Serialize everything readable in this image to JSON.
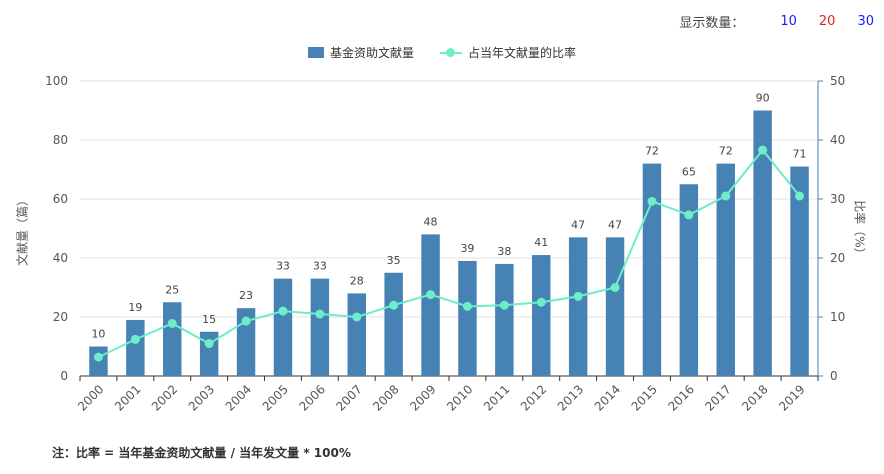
{
  "display_control": {
    "label": "显示数量：",
    "options": [
      {
        "text": "10",
        "color": "#1a1aff"
      },
      {
        "text": "20",
        "color": "#e02020"
      },
      {
        "text": "30",
        "color": "#1a1aff"
      }
    ]
  },
  "colors": {
    "bar": "#4682b4",
    "line": "#6eedc8",
    "axis_right": "#4682b4"
  },
  "chart_data": {
    "type": "bar",
    "categories": [
      "2000",
      "2001",
      "2002",
      "2003",
      "2004",
      "2005",
      "2006",
      "2007",
      "2008",
      "2009",
      "2010",
      "2011",
      "2012",
      "2013",
      "2014",
      "2015",
      "2016",
      "2017",
      "2018",
      "2019"
    ],
    "series": [
      {
        "name": "基金资助文献量",
        "type": "bar",
        "axis": "left",
        "values": [
          10,
          19,
          25,
          15,
          23,
          33,
          33,
          28,
          35,
          48,
          39,
          38,
          41,
          47,
          47,
          72,
          65,
          72,
          90,
          71
        ]
      },
      {
        "name": "占当年文献量的比率",
        "type": "line",
        "axis": "right",
        "values": [
          3.2,
          6.2,
          8.9,
          5.5,
          9.3,
          11.0,
          10.5,
          10.0,
          12.0,
          13.8,
          11.8,
          12.0,
          12.5,
          13.5,
          15.0,
          29.6,
          27.3,
          30.5,
          38.3,
          30.5
        ]
      }
    ],
    "ylabel": "文献量（篇）",
    "y2label": "比率（%）",
    "ylim": [
      0,
      100
    ],
    "y2lim": [
      0,
      50
    ],
    "yticks": [
      0,
      20,
      40,
      60,
      80,
      100
    ],
    "y2ticks": [
      0,
      10,
      20,
      30,
      40,
      50
    ],
    "grid": true,
    "legend_position": "top-center"
  },
  "note": "注：比率 = 当年基金资助文献量 / 当年发文量 * 100%"
}
